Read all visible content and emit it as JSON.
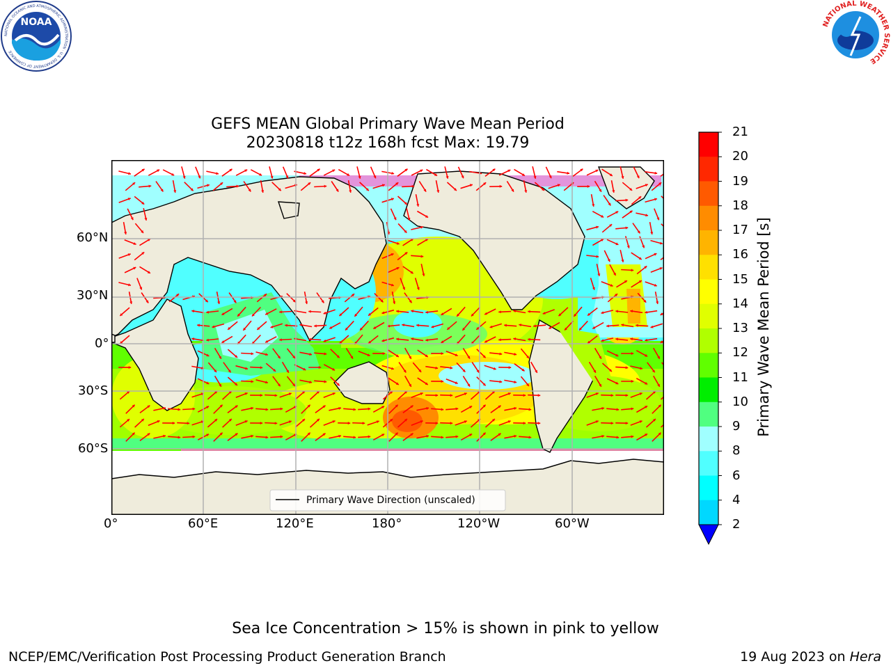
{
  "header": {
    "left_logo": {
      "text": "NOAA",
      "ring_text": "NATIONAL OCEANIC AND ATMOSPHERIC ADMINISTRATION · U.S. DEPARTMENT OF COMMERCE",
      "icon": "noaa-logo"
    },
    "right_logo": {
      "ring_text": "NATIONAL WEATHER SERVICE",
      "icon": "nws-logo"
    }
  },
  "map": {
    "title_line1": "GEFS MEAN Global Primary Wave Mean Period",
    "title_line2": "20230818 t12z 168h fcst   Max: 19.79",
    "lat_ticks": [
      "60°N",
      "30°N",
      "0°",
      "30°S",
      "60°S"
    ],
    "lon_ticks": [
      "0°",
      "60°E",
      "120°E",
      "180°",
      "120°W",
      "60°W"
    ],
    "legend_label": "Primary Wave Direction (unscaled)",
    "colors": {
      "land": "#efecdc",
      "ice": "#ffffff",
      "arrow": "#ff0000",
      "grid": "#b0b0b0"
    }
  },
  "colorbar": {
    "label": "Primary Wave Mean Period [s]",
    "ticks": [
      "2",
      "4",
      "6",
      "8",
      "9",
      "10",
      "11",
      "12",
      "13",
      "14",
      "15",
      "16",
      "17",
      "18",
      "19",
      "20",
      "21"
    ],
    "colors": [
      "#0070ff",
      "#00d8ff",
      "#00ffff",
      "#50ffff",
      "#a0ffff",
      "#50ff80",
      "#00ee00",
      "#60ff00",
      "#b0ff00",
      "#e0ff00",
      "#ffff00",
      "#ffe000",
      "#ffb400",
      "#ff8c00",
      "#ff5a00",
      "#ff2800",
      "#ff0000"
    ],
    "under_color": "#0000ff"
  },
  "note": "Sea Ice Concentration > 15% is shown in pink to yellow",
  "footer": {
    "left": "NCEP/EMC/Verification Post Processing Product Generation Branch",
    "date": "19 Aug 2023 on",
    "host": "Hera"
  }
}
